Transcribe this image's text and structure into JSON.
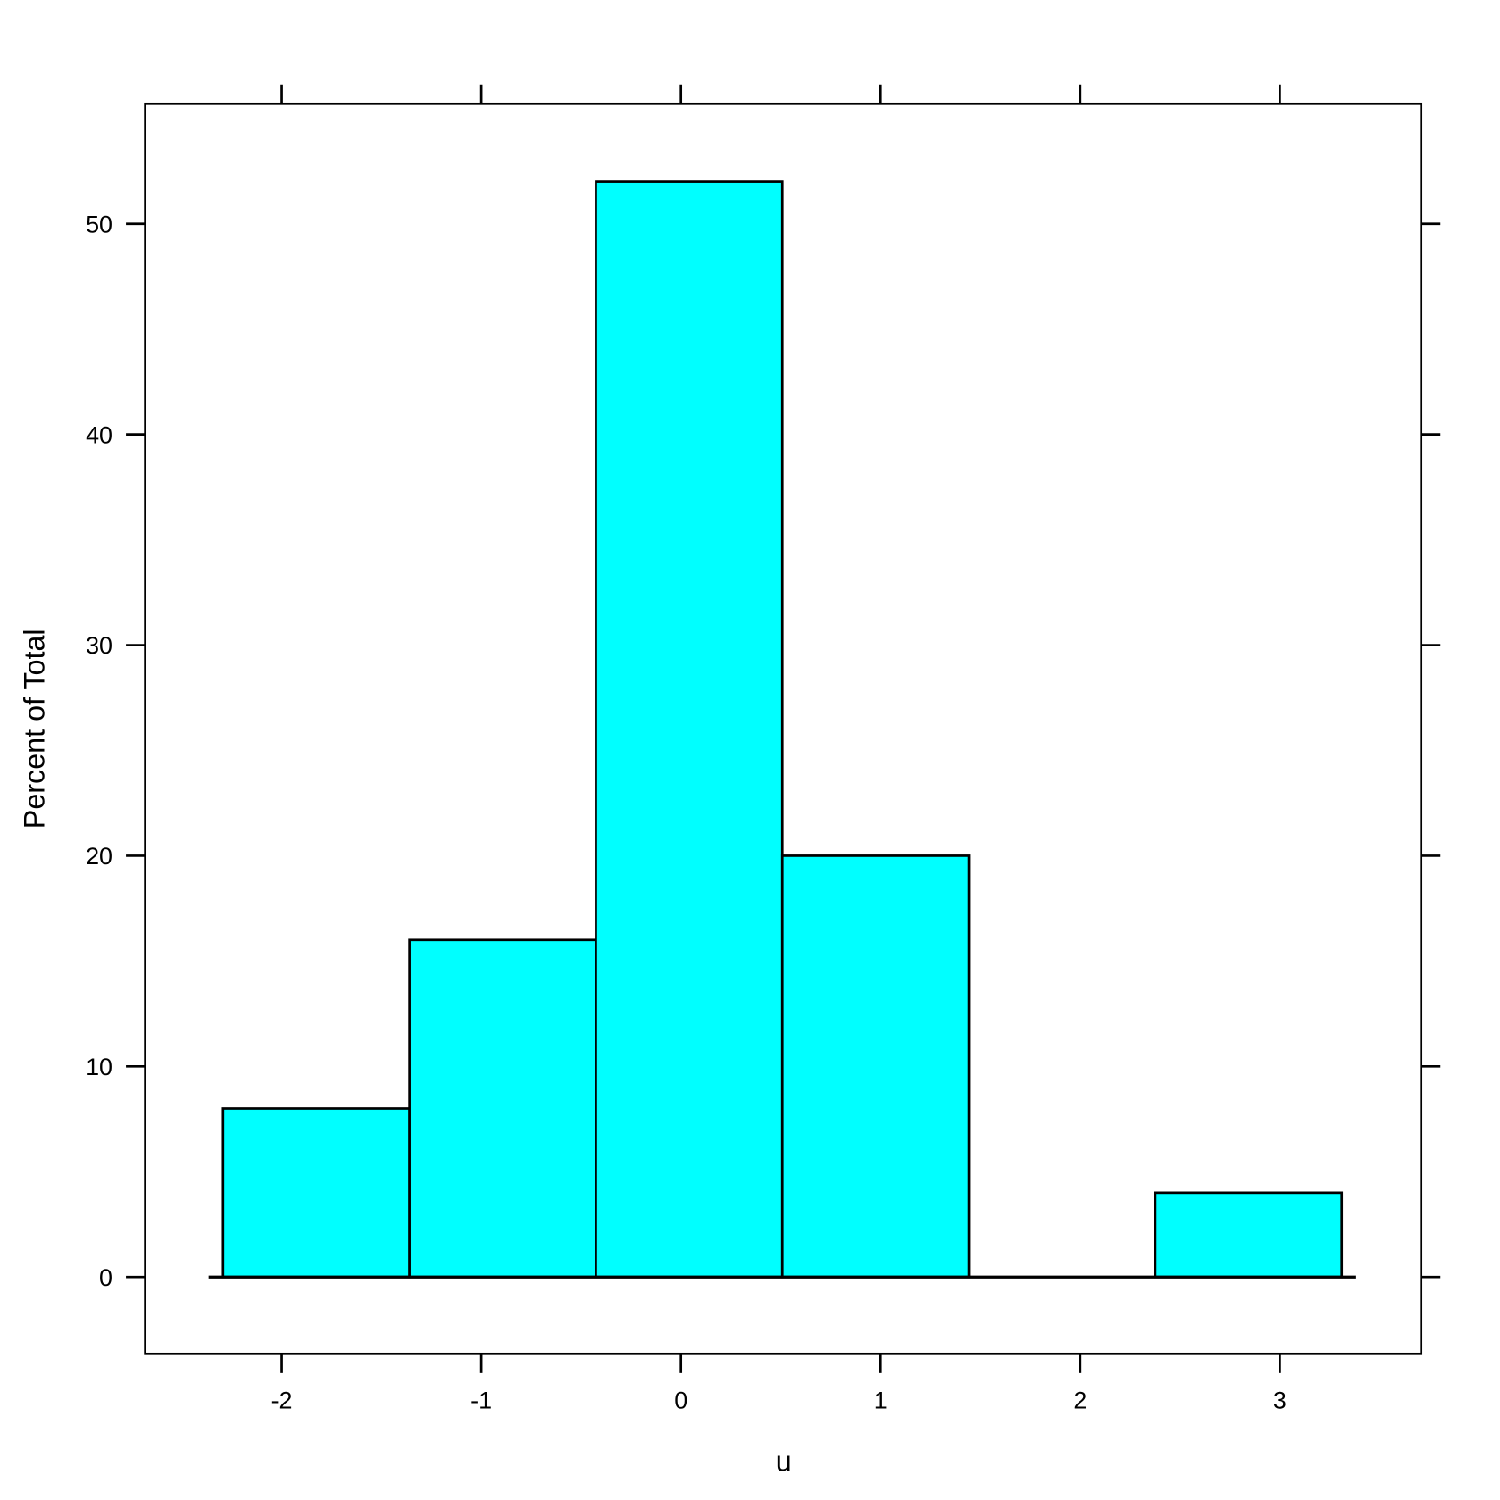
{
  "chart_data": {
    "type": "bar",
    "subtype": "histogram",
    "title": "",
    "xlabel": "u",
    "ylabel": "Percent of Total",
    "bin_edges": [
      -2.294,
      -1.36,
      -0.426,
      0.508,
      1.442,
      2.376,
      3.31
    ],
    "values": [
      8,
      16,
      52,
      20,
      0,
      4
    ],
    "xlim": [
      -2.684,
      3.708
    ],
    "ylim": [
      -3.65,
      55.7
    ],
    "x_ticks": [
      -2,
      -1,
      0,
      1,
      2,
      3
    ],
    "x_tick_labels": [
      "-2",
      "-1",
      "0",
      "1",
      "2",
      "3"
    ],
    "y_ticks": [
      0,
      10,
      20,
      30,
      40,
      50
    ],
    "y_tick_labels": [
      "0",
      "10",
      "20",
      "30",
      "40",
      "50"
    ],
    "grid": false,
    "legend": "none",
    "bar_color": "#00FFFF",
    "edge_color": "#000000"
  }
}
